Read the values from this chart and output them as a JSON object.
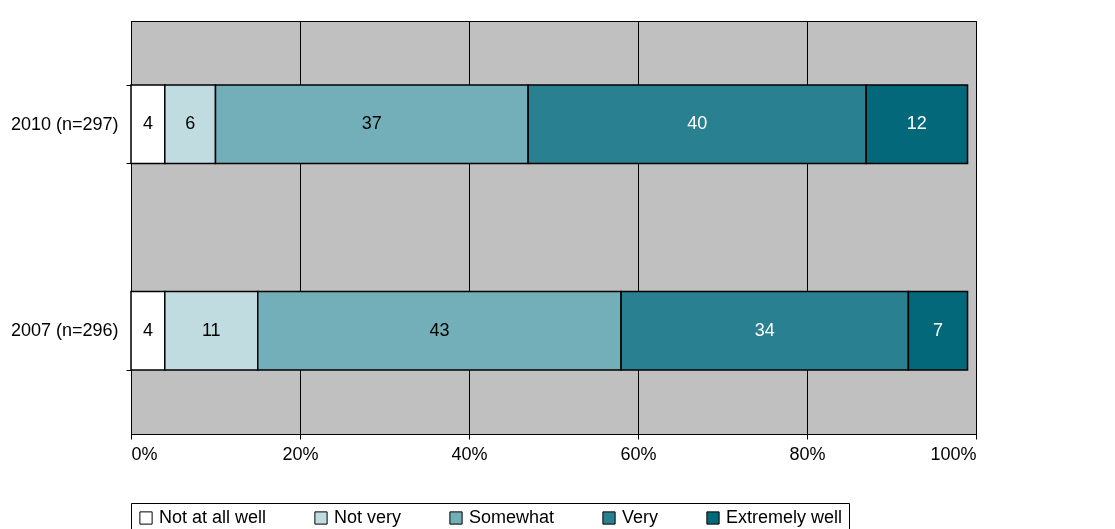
{
  "chart_data": {
    "type": "bar",
    "orientation": "horizontal",
    "stacked": true,
    "categories": [
      "2010 (n=297)",
      "2007 (n=296)"
    ],
    "series": [
      {
        "name": "Not at all well",
        "color": "#ffffff",
        "values": [
          4,
          4
        ]
      },
      {
        "name": "Not very",
        "color": "#c0dce0",
        "values": [
          6,
          11
        ]
      },
      {
        "name": "Somewhat",
        "color": "#72afb8",
        "values": [
          37,
          43
        ]
      },
      {
        "name": "Very",
        "color": "#288090",
        "values": [
          40,
          34
        ]
      },
      {
        "name": "Extremely well",
        "color": "#03687a",
        "values": [
          12,
          7
        ]
      }
    ],
    "xlim": [
      0,
      100
    ],
    "xticks": [
      {
        "value": 0,
        "label": "0%"
      },
      {
        "value": 20,
        "label": "20%"
      },
      {
        "value": 40,
        "label": "40%"
      },
      {
        "value": 60,
        "label": "60%"
      },
      {
        "value": 80,
        "label": "80%"
      },
      {
        "value": 100,
        "label": "100%"
      }
    ],
    "grid": "x",
    "legend": "bottom",
    "data_labels": true
  }
}
